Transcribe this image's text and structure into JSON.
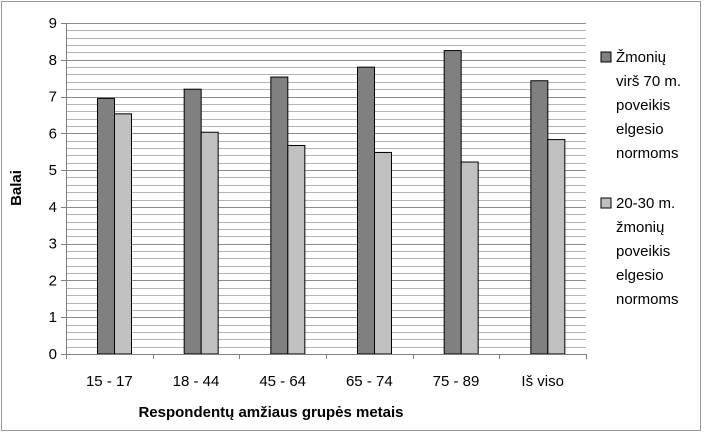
{
  "chart_data": {
    "type": "bar",
    "categories": [
      "15 - 17",
      "18 - 44",
      "45 - 64",
      "65 - 74",
      "75 - 89",
      "Iš viso"
    ],
    "series": [
      {
        "name": "Žmonių virš 70 m. poveikis elgesio normoms",
        "legend_lines": [
          "Žmonių",
          "virš 70 m.",
          "poveikis",
          "elgesio",
          "normoms"
        ],
        "color": "#808080",
        "values": [
          6.95,
          7.2,
          7.53,
          7.8,
          8.25,
          7.43
        ]
      },
      {
        "name": "20-30 m. žmonių poveikis elgesio normoms",
        "legend_lines": [
          "20-30 m.",
          "žmonių",
          "poveikis",
          "elgesio",
          "normoms"
        ],
        "color": "#c0c0c0",
        "values": [
          6.53,
          6.03,
          5.67,
          5.48,
          5.22,
          5.83
        ]
      }
    ],
    "xlabel": "Respondentų amžiaus grupės metais",
    "ylabel": "Balai",
    "ylim": [
      0,
      9
    ],
    "yticks": [
      "0",
      "1",
      "2",
      "3",
      "4",
      "5",
      "6",
      "7",
      "8",
      "9"
    ],
    "grid": true,
    "minor_grid_step": 0.2,
    "legend_position": "right"
  }
}
